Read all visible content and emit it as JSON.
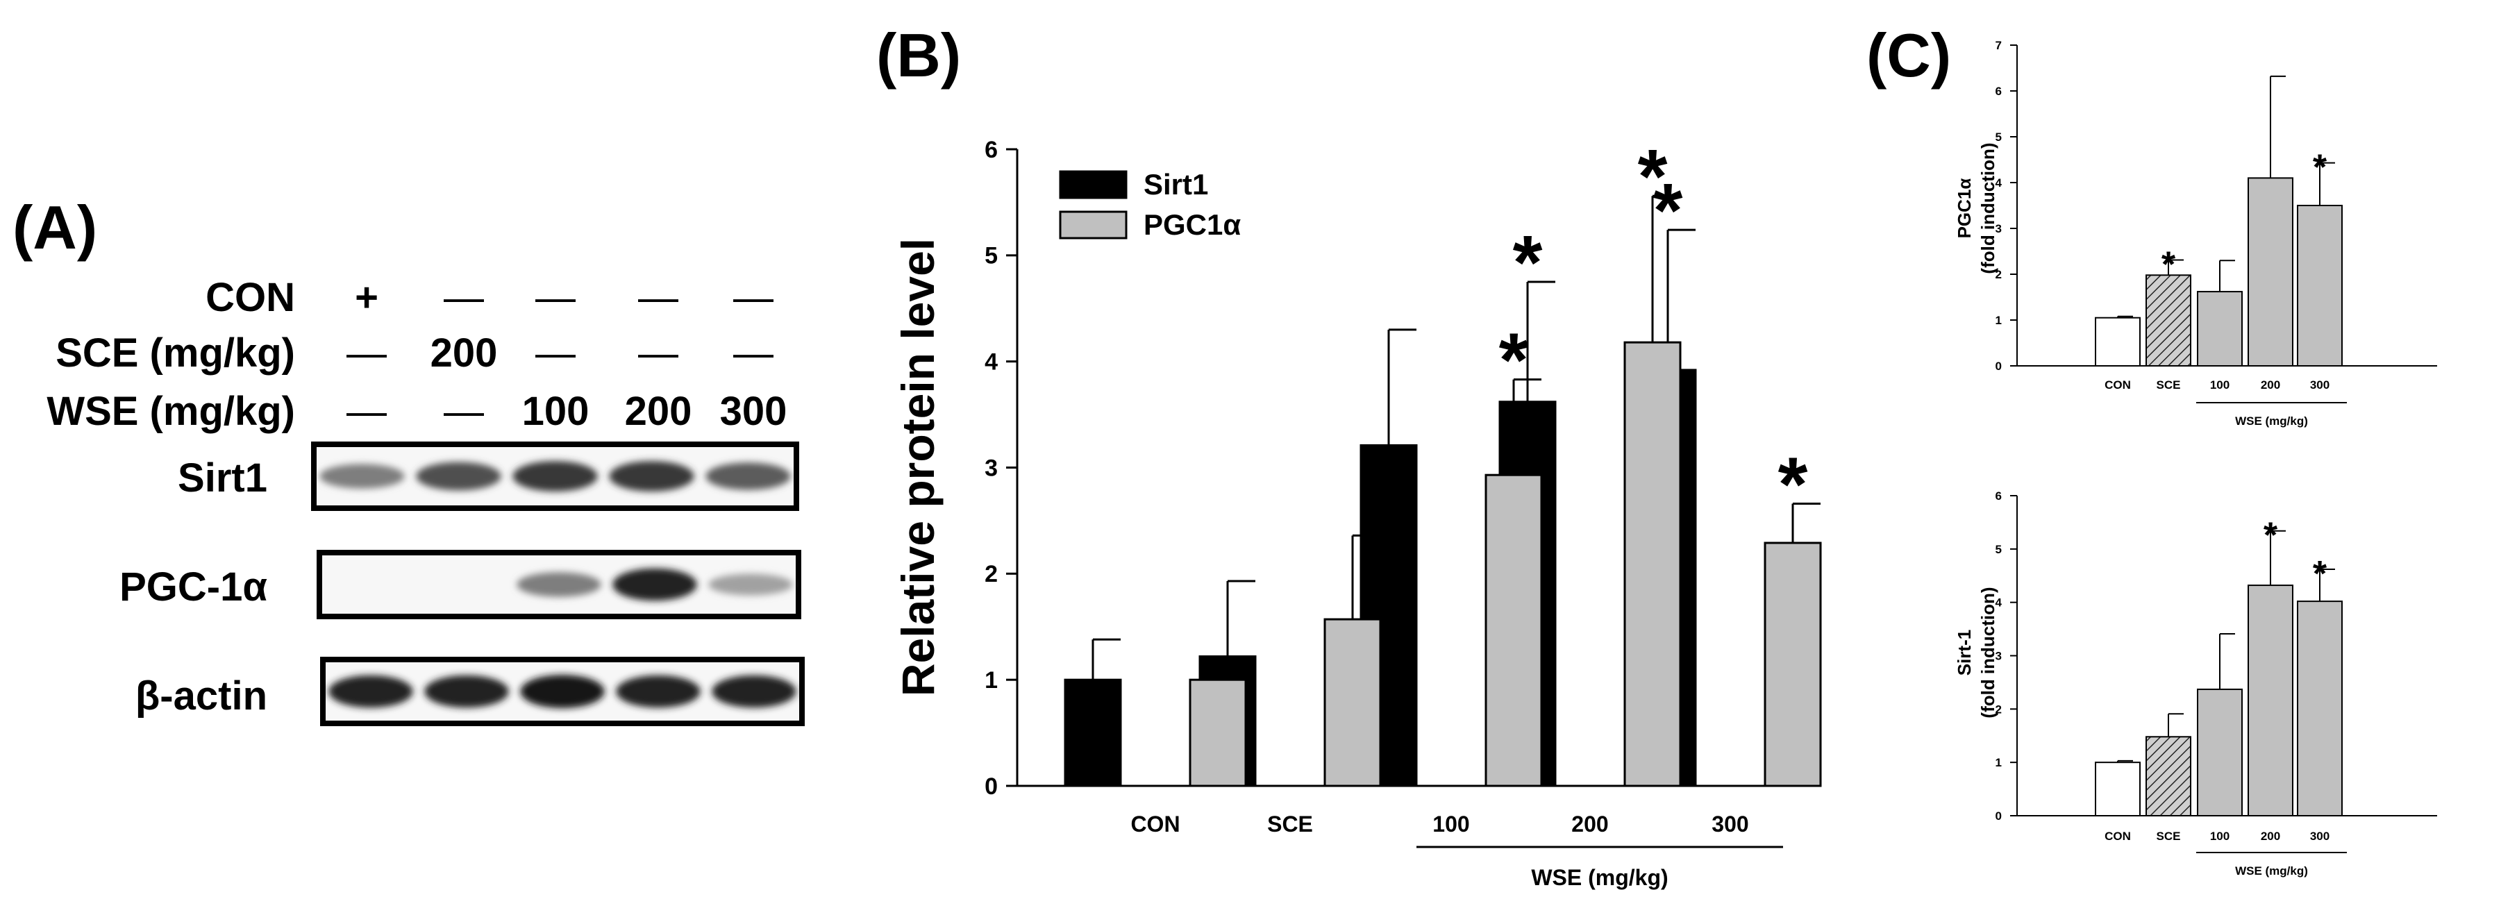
{
  "panel_a": {
    "label": "(A)",
    "treatments": [
      {
        "name": "CON",
        "marks": [
          "+",
          "—",
          "—",
          "—",
          "—"
        ]
      },
      {
        "name": "SCE (mg/kg)",
        "marks": [
          "—",
          "200",
          "—",
          "—",
          "—"
        ]
      },
      {
        "name": "WSE (mg/kg)",
        "marks": [
          "—",
          "—",
          "100",
          "200",
          "300"
        ]
      }
    ],
    "blots": [
      {
        "name": "Sirt1",
        "intensities": [
          0.55,
          0.75,
          0.85,
          0.85,
          0.7
        ]
      },
      {
        "name": "PGC-1α",
        "intensities": [
          0.0,
          0.0,
          0.55,
          0.95,
          0.4
        ]
      },
      {
        "name": "β-actin",
        "intensities": [
          0.95,
          0.95,
          1.0,
          0.95,
          0.95
        ]
      }
    ]
  },
  "panel_b": {
    "label": "(B)"
  },
  "panel_c": {
    "label": "(C)"
  },
  "chart_data": [
    {
      "id": "B",
      "type": "bar",
      "title": "",
      "ylabel": "Relative protein level",
      "xlabel": "",
      "ylim": [
        0,
        6
      ],
      "yticks": [
        "0",
        "1",
        "2",
        "3",
        "4",
        "5",
        "6"
      ],
      "categories": [
        "CON",
        "SCE",
        "100",
        "200",
        "300"
      ],
      "group_label": "WSE (mg/kg)",
      "legend": {
        "position": "top-left"
      },
      "series": [
        {
          "name": "Sirt1",
          "color": "#000000",
          "values": [
            1.0,
            1.22,
            3.21,
            3.62,
            3.92
          ],
          "errors": [
            0.38,
            0.71,
            1.09,
            1.13,
            1.32
          ],
          "sig": [
            "",
            "",
            "",
            "*",
            "*"
          ]
        },
        {
          "name": "PGC1α",
          "color": "#c0c0c0",
          "values": [
            1.0,
            1.57,
            2.93,
            4.18,
            2.29
          ],
          "errors": [
            0.21,
            0.79,
            0.9,
            1.38,
            0.37
          ],
          "sig": [
            "",
            "",
            "*",
            "*",
            "*"
          ]
        }
      ]
    },
    {
      "id": "C-top",
      "type": "bar",
      "ylabel": "PGC1α",
      "ylabel2": "(fold induction)",
      "ylim": [
        0,
        7
      ],
      "yticks": [
        "0",
        "1",
        "2",
        "3",
        "4",
        "5",
        "6",
        "7"
      ],
      "categories": [
        "CON",
        "SCE",
        "100",
        "200",
        "300"
      ],
      "group_label": "WSE (mg/kg)",
      "values": [
        1.05,
        1.98,
        1.62,
        4.1,
        3.5
      ],
      "errors": [
        0.03,
        0.33,
        0.68,
        2.22,
        0.93
      ],
      "sig": [
        "",
        "*",
        "",
        "",
        "*"
      ],
      "styles": [
        "open",
        "hatched",
        "gray",
        "gray",
        "gray"
      ]
    },
    {
      "id": "C-bottom",
      "type": "bar",
      "ylabel": "Sirt-1",
      "ylabel2": "(fold induction)",
      "ylim": [
        0,
        6
      ],
      "yticks": [
        "0",
        "1",
        "2",
        "3",
        "4",
        "5",
        "6"
      ],
      "categories": [
        "CON",
        "SCE",
        "100",
        "200",
        "300"
      ],
      "group_label": "WSE (mg/kg)",
      "values": [
        1.0,
        1.48,
        2.37,
        4.32,
        4.02
      ],
      "errors": [
        0.03,
        0.43,
        1.04,
        1.02,
        0.6
      ],
      "sig": [
        "",
        "",
        "",
        "*",
        "*"
      ],
      "styles": [
        "open",
        "hatched",
        "gray",
        "gray",
        "gray"
      ]
    }
  ]
}
